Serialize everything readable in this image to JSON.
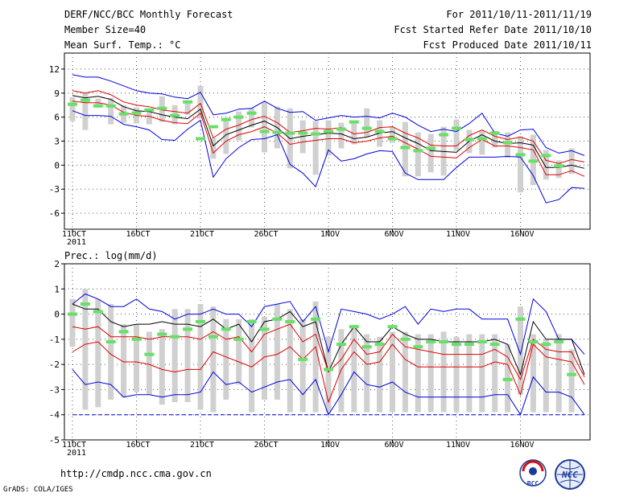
{
  "header": {
    "title": "DERF/NCC/BCC Monthly Forecast",
    "member_size": "Member Size=40",
    "variable": "Mean Surf. Temp.: °C",
    "period": "For 2011/10/11-2011/11/19",
    "started": "Fcst Started Refer Date 2011/10/10",
    "produced": "Fcst Produced Date 2011/10/11"
  },
  "footer": {
    "url": "http://cmdp.ncc.cma.gov.cn",
    "grads": "GrADS: COLA/IGES",
    "logo_bcc": "BCC",
    "logo_ncc": "NCC"
  },
  "colors": {
    "box": "#d0d0d0",
    "median": "#66e066",
    "mean": "#000000",
    "sd_band": "#e00000",
    "extreme": "#0000e0",
    "grid": "#555555"
  },
  "chart_data": [
    {
      "type": "line",
      "title": "Mean Surf. Temp.: °C",
      "x_axis": {
        "ticks": [
          "11OCT",
          "16OCT",
          "21OCT",
          "26OCT",
          "1NOV",
          "6NOV",
          "11NOV",
          "16NOV"
        ],
        "year": "2011",
        "days": 40
      },
      "ylim": [
        -8,
        14
      ],
      "yticks": [
        12,
        9,
        6,
        3,
        0,
        -3,
        -6
      ],
      "series": [
        {
          "name": "max",
          "values": [
            11.3,
            11,
            11,
            10.5,
            9.9,
            9.3,
            9,
            8.9,
            8.5,
            8.3,
            9.1,
            6.3,
            6.5,
            7,
            7.1,
            8,
            7.1,
            6.6,
            6.7,
            5.6,
            5.9,
            6.2,
            6,
            6.1,
            5.9,
            6.5,
            6,
            5,
            4.2,
            4.5,
            4.2,
            5.2,
            6.5,
            4,
            3.6,
            4.4,
            4.5,
            2.2,
            1.5,
            1.8,
            1.2
          ]
        },
        {
          "name": "upper_sd",
          "values": [
            9.3,
            9,
            9.3,
            8.8,
            7.9,
            7.5,
            7.3,
            6.9,
            6.7,
            6.5,
            7.7,
            3.4,
            4.5,
            5,
            5.7,
            6.1,
            5.3,
            4.1,
            4.3,
            4.6,
            4.5,
            4.7,
            3.9,
            4.1,
            4.7,
            4.8,
            4,
            3.4,
            2.5,
            2.4,
            2.4,
            3.7,
            4.4,
            3.6,
            3.2,
            3.5,
            3,
            0.6,
            0.2,
            0.7,
            0.4
          ]
        },
        {
          "name": "mean",
          "values": [
            8.7,
            8.4,
            8.6,
            8.2,
            7.3,
            6.8,
            6.7,
            6.3,
            6,
            5.8,
            7,
            2.4,
            3.8,
            4.4,
            5,
            5.5,
            4.7,
            3.3,
            3.6,
            3.8,
            4,
            3.9,
            3.3,
            3.5,
            4,
            4.2,
            3.4,
            2.7,
            1.8,
            1.7,
            1.6,
            3,
            3.8,
            3,
            2.7,
            2.8,
            2.5,
            -0.3,
            -0.3,
            0,
            -0.4
          ]
        },
        {
          "name": "lower_sd",
          "values": [
            8,
            7.8,
            7.8,
            7.5,
            6.6,
            6.2,
            6.1,
            5.6,
            5.3,
            5.2,
            6.5,
            1.5,
            3,
            3.8,
            4.2,
            4.8,
            4,
            2.6,
            2.9,
            3.1,
            3.3,
            3.3,
            2.8,
            3,
            3.4,
            3.6,
            2.8,
            2,
            1.1,
            1,
            0.9,
            2.2,
            3.2,
            2.4,
            2.4,
            2.2,
            1.9,
            -1.2,
            -1.2,
            -0.7,
            -1.4
          ]
        },
        {
          "name": "min",
          "values": [
            6.8,
            6.2,
            6.2,
            6.1,
            5.1,
            4.8,
            4.4,
            3.2,
            3.1,
            4.5,
            5.6,
            -1.5,
            0.8,
            2.2,
            3.2,
            3.3,
            3.8,
            0.1,
            -1,
            -2.7,
            1.9,
            0.5,
            0.8,
            1.4,
            1.8,
            1.7,
            -1,
            -1.8,
            -1.8,
            -1.8,
            -0.3,
            1,
            1,
            1,
            1.1,
            1,
            -1.3,
            -4.7,
            -4.3,
            -2.8,
            -2.9
          ]
        },
        {
          "name": "median",
          "values": [
            7.6,
            8.1,
            7.4,
            7.4,
            6.4,
            6.5,
            6.9,
            7.1,
            6.2,
            7.9,
            3.3,
            4.8,
            5.7,
            6,
            6.5,
            4.2,
            4.1,
            4,
            4,
            3.9,
            4.2,
            4.5,
            5.4,
            4.6,
            4.2,
            3.3,
            2.2,
            1.8,
            2.1,
            3.8,
            4.6,
            3.2,
            3.3,
            4,
            2.8,
            1.3,
            0.5,
            1.2,
            -0.1
          ]
        }
      ],
      "boxes": {
        "upper": [
          8.5,
          9,
          8.3,
          8.4,
          7.5,
          7.2,
          6.9,
          8.6,
          7.5,
          8,
          9.9,
          3.4,
          5.8,
          6.7,
          7.1,
          7.9,
          7.3,
          7.1,
          5.6,
          5.5,
          5.6,
          5.3,
          5.4,
          7.1,
          5.6,
          4.8,
          5.4,
          4.1,
          3.9,
          4.8,
          5.7,
          4.4,
          4.3,
          4.3,
          4.1,
          3.6,
          3.8,
          1.9,
          0.6,
          2.1
        ],
        "lower": [
          5.5,
          4.4,
          7.2,
          5.1,
          5.3,
          5.2,
          5.1,
          5.4,
          5.1,
          6.3,
          5.8,
          0.8,
          1.4,
          3.1,
          4.7,
          1.6,
          2.1,
          -0.4,
          1.5,
          -1.2,
          1.2,
          2.1,
          2.6,
          3.5,
          2.3,
          2.8,
          -1.4,
          -1.4,
          -0.9,
          -1.3,
          1.8,
          1.5,
          1.3,
          2.2,
          0.9,
          -3.4,
          -2.5,
          -1.8,
          -1.6,
          -1.1
        ]
      }
    },
    {
      "type": "line",
      "title": "Prec.: log(mm/d)",
      "x_axis": {
        "ticks": [
          "11OCT",
          "16OCT",
          "21OCT",
          "26OCT",
          "1NOV",
          "6NOV",
          "11NOV",
          "16NOV"
        ],
        "year": "2011",
        "days": 40
      },
      "ylim": [
        -5,
        2
      ],
      "yticks": [
        2,
        1,
        0,
        -1,
        -2,
        -3,
        -4,
        -5
      ],
      "series": [
        {
          "name": "max",
          "values": [
            0.4,
            0.8,
            0.6,
            0.3,
            0.3,
            0.6,
            0.2,
            0.1,
            -0.2,
            0,
            0,
            0.2,
            0,
            0,
            -0.5,
            0.3,
            0.4,
            0.5,
            -0.3,
            0.3,
            -1.5,
            0.2,
            0.1,
            0,
            -0.2,
            0,
            0.3,
            -0.4,
            0.2,
            0.1,
            0.2,
            0.2,
            -0.2,
            -0.2,
            -0.2,
            -1.6,
            0.6,
            0.1,
            -1,
            -1,
            -1.6
          ]
        },
        {
          "name": "mean",
          "values": [
            0.4,
            0.2,
            0.2,
            -0.3,
            -0.5,
            -0.4,
            -0.4,
            -0.3,
            -0.4,
            -0.4,
            -0.5,
            -0.2,
            -0.6,
            -0.4,
            -1.1,
            -0.3,
            -0.2,
            0.1,
            -0.5,
            -0.3,
            -2.3,
            -1.2,
            -0.5,
            -1.1,
            -1.1,
            -0.5,
            -0.8,
            -1,
            -1,
            -1.1,
            -1.1,
            -1.1,
            -1.1,
            -1,
            -1.2,
            -2.4,
            -0.3,
            -1,
            -1,
            -1,
            -2.4
          ]
        },
        {
          "name": "upper_sd",
          "values": [
            -0.5,
            -0.6,
            -0.5,
            -0.9,
            -0.9,
            -0.9,
            -1,
            -0.9,
            -0.9,
            -0.9,
            -1,
            -0.7,
            -1,
            -0.9,
            -1.5,
            -0.8,
            -0.6,
            -0.4,
            -1.1,
            -0.8,
            -2.3,
            -1.8,
            -1,
            -1.6,
            -1.5,
            -0.8,
            -1.3,
            -1.4,
            -1.5,
            -1.6,
            -1.6,
            -1.6,
            -1.6,
            -1.4,
            -1.7,
            -2.6,
            -1,
            -1.4,
            -1.5,
            -1.5,
            -2.5
          ]
        },
        {
          "name": "lower_sd",
          "values": [
            -1.5,
            -1.2,
            -1.1,
            -1.6,
            -1.9,
            -1.9,
            -2,
            -2.2,
            -2.3,
            -2.2,
            -2.2,
            -1.5,
            -1.7,
            -1.9,
            -2.1,
            -1.7,
            -1.6,
            -1.3,
            -1.8,
            -1.3,
            -3.5,
            -2.2,
            -1.5,
            -2,
            -1.9,
            -1.2,
            -1.8,
            -2.1,
            -2.1,
            -2.1,
            -2.1,
            -2.1,
            -2.1,
            -1.9,
            -2,
            -3.2,
            -1.2,
            -1.7,
            -1.8,
            -1.9,
            -2.8
          ]
        },
        {
          "name": "min",
          "values": [
            -2.2,
            -2.8,
            -2.7,
            -2.8,
            -3.3,
            -3.2,
            -3.2,
            -3.3,
            -3.2,
            -3.2,
            -3.1,
            -2.3,
            -2.8,
            -2.7,
            -3.1,
            -2.9,
            -2.7,
            -2.6,
            -3.2,
            -2.6,
            -4,
            -3.2,
            -2.3,
            -2.8,
            -2.9,
            -2.7,
            -3.1,
            -3.3,
            -3.3,
            -3.3,
            -3.3,
            -3.3,
            -3.3,
            -3.2,
            -3.2,
            -4,
            -2.5,
            -3.1,
            -3.1,
            -3.3,
            -4
          ]
        },
        {
          "name": "lower_bound",
          "values": [
            -4,
            -4,
            -4,
            -4,
            -4,
            -4,
            -4,
            -4,
            -4,
            -4,
            -4,
            -4,
            -4,
            -4,
            -4,
            -4,
            -4,
            -4,
            -4,
            -4,
            -4,
            -4,
            -4,
            -4,
            -4,
            -4,
            -4,
            -4,
            -4,
            -4,
            -4,
            -4,
            -4,
            -4,
            -4,
            -4,
            -4,
            -4,
            -4,
            -4,
            -4
          ]
        },
        {
          "name": "median",
          "values": [
            0,
            0.4,
            0.1,
            -1.1,
            -0.7,
            -1,
            -1.6,
            -0.8,
            -0.9,
            -0.6,
            -0.3,
            -0.9,
            -0.6,
            -1,
            -0.3,
            -0.6,
            -0.2,
            -0.3,
            -1.8,
            -0.2,
            -2.2,
            -1.2,
            -0.5,
            -1.3,
            -1.2,
            -0.5,
            -1,
            -1.3,
            -1.1,
            -1.1,
            -1.2,
            -1.2,
            -1.1,
            -1.2,
            -2.6,
            -0.2,
            -1.1,
            -1.2,
            -1.1,
            -2.4
          ]
        }
      ],
      "boxes": {
        "upper": [
          0.6,
          1,
          0.6,
          0.4,
          -0.4,
          -0.4,
          -0.7,
          -0.6,
          0.2,
          0.2,
          0.4,
          0.3,
          -0.2,
          -0.2,
          -0.2,
          -0.1,
          0.4,
          0.2,
          -0.2,
          0.5,
          -0.9,
          -0.6,
          -0.5,
          -0.8,
          -0.9,
          -0.7,
          -0.7,
          -0.8,
          -0.8,
          -0.7,
          -0.9,
          -0.8,
          -0.8,
          -0.8,
          -1.2,
          0.3,
          -0.8,
          -1,
          -0.8,
          -1.4
        ],
        "lower": [
          -1.3,
          -3.8,
          -3.7,
          -3.4,
          -3.3,
          -3.1,
          -3.2,
          -3.6,
          -3.5,
          -3.5,
          -3.8,
          -3.9,
          -3.4,
          -2.8,
          -3.9,
          -3.4,
          -3.4,
          -3.9,
          -3.9,
          -3.9,
          -3.9,
          -3.9,
          -3.9,
          -3.9,
          -3.9,
          -3.9,
          -3.9,
          -3.9,
          -3.9,
          -3.9,
          -3.9,
          -3.9,
          -3.9,
          -3.9,
          -3.9,
          -3.2,
          -3.9,
          -3.9,
          -3.9,
          -3.9
        ]
      }
    }
  ]
}
